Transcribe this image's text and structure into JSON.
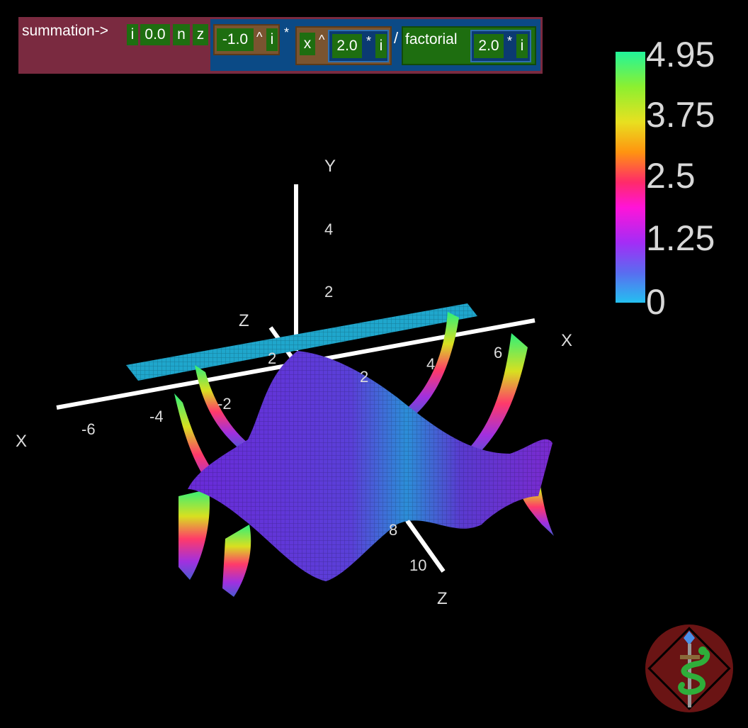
{
  "formula": {
    "summation_label": "summation->",
    "index_var": "i",
    "start": "0.0",
    "upper": "n",
    "eval_var": "z",
    "neg_one": "-1.0",
    "pow1": "^",
    "exp_i1": "i",
    "times1": "*",
    "x_var": "x",
    "pow2": "^",
    "two_a": "2.0",
    "times2": "*",
    "i_a": "i",
    "divide": "/",
    "factorial_label": "factorial",
    "two_b": "2.0",
    "times3": "*",
    "i_b": "i"
  },
  "colorbar": {
    "ticks": [
      "4.95",
      "3.75",
      "2.5",
      "1.25",
      "0"
    ],
    "colors": [
      "#22f59a",
      "#e8e020",
      "#ff2a6a",
      "#a42cf6",
      "#24c0f0"
    ]
  },
  "axes": {
    "x_label_right": "X",
    "x_label_left": "X",
    "y_label": "Y",
    "z_label_top": "Z",
    "z_label_bottom": "Z",
    "y_ticks": [
      "4",
      "2"
    ],
    "x_ticks": [
      "-6",
      "-4",
      "-2",
      "2",
      "2",
      "4",
      "6"
    ],
    "z_ticks": [
      "8",
      "10"
    ]
  },
  "colors": {
    "surface_main": "#5a3ad0",
    "plane": "#1fa6cc",
    "axis": "#ffffff"
  },
  "logo": {
    "icon": "caduceus-snake-dagger-icon"
  }
}
